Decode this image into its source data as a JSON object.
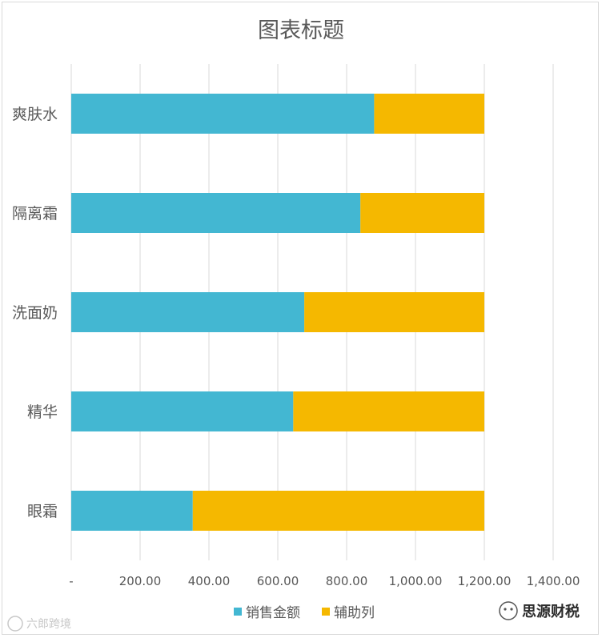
{
  "chart_data": {
    "type": "bar",
    "orientation": "horizontal",
    "stacked": true,
    "title": "图表标题",
    "xlabel": "",
    "ylabel": "",
    "categories": [
      "爽肤水",
      "隔离霜",
      "洗面奶",
      "精华",
      "眼霜"
    ],
    "series": [
      {
        "name": "销售金额",
        "color": "#43b7d2",
        "values": [
          880,
          840,
          677,
          645,
          353
        ]
      },
      {
        "name": "辅助列",
        "color": "#f5b800",
        "values": [
          320,
          360,
          523,
          555,
          847
        ]
      }
    ],
    "xlim": [
      0,
      1400
    ],
    "xticks": [
      0,
      200,
      400,
      600,
      800,
      1000,
      1200,
      1400
    ],
    "xtick_labels": [
      "-",
      "200.00",
      "400.00",
      "600.00",
      "800.00",
      "1,000.00",
      "1,200.00",
      "1,400.00"
    ],
    "grid": "vertical",
    "legend_position": "bottom"
  },
  "watermarks": {
    "left": "六郎跨境",
    "right": "思源财税"
  }
}
